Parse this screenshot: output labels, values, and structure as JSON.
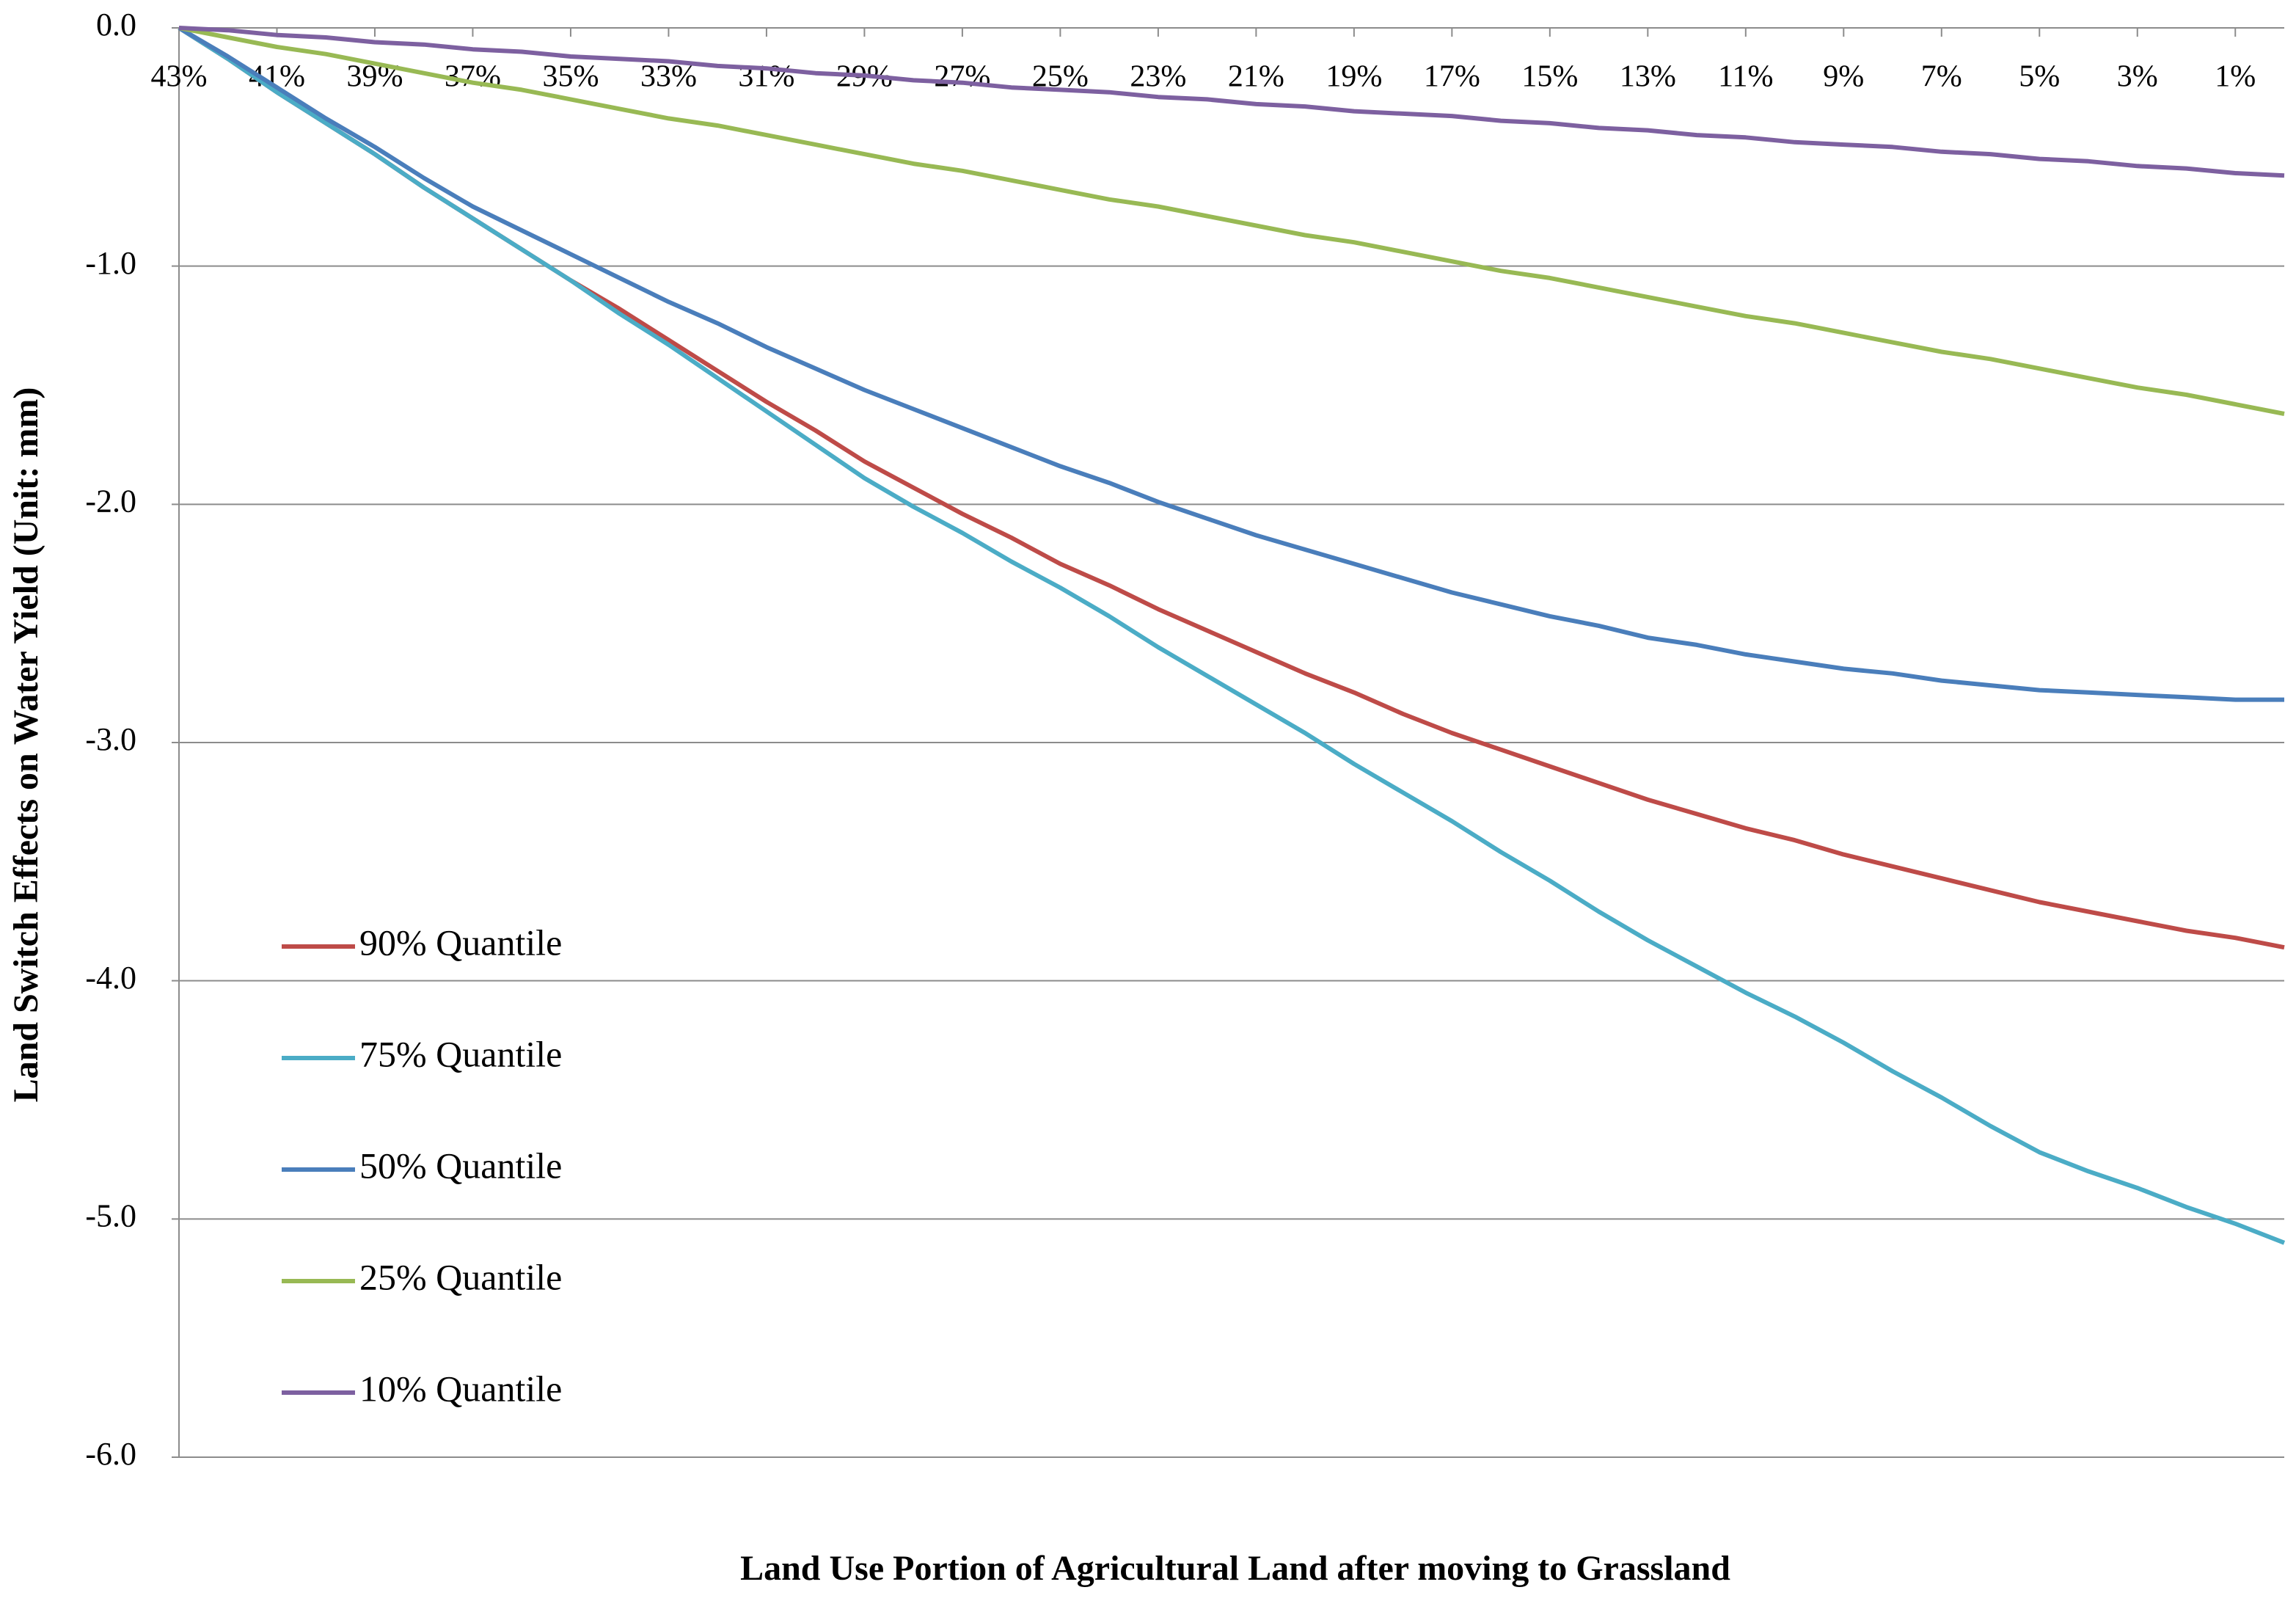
{
  "chart_data": {
    "type": "line",
    "x_label": "Land Use  Portion of Agricultural Land after moving to Grassland",
    "y_label": "Land Switch Effects on Water Yield (Unit: mm)",
    "categories": [
      "43%",
      null,
      "41%",
      null,
      "39%",
      null,
      "37%",
      null,
      "35%",
      null,
      "33%",
      null,
      "31%",
      null,
      "29%",
      null,
      "27%",
      null,
      "25%",
      null,
      "23%",
      null,
      "21%",
      null,
      "19%",
      null,
      "17%",
      null,
      "15%",
      null,
      "13%",
      null,
      "11%",
      null,
      "9%",
      null,
      "7%",
      null,
      "5%",
      null,
      "3%",
      null,
      "1%",
      null
    ],
    "ylim": [
      -6,
      0
    ],
    "yticks": [
      {
        "value": -6,
        "label": "-6.0"
      },
      {
        "value": -5,
        "label": "-5.0"
      },
      {
        "value": -4,
        "label": "-4.0"
      },
      {
        "value": -3,
        "label": "-3.0"
      },
      {
        "value": -2,
        "label": "-2.0"
      },
      {
        "value": -1,
        "label": "-1.0"
      },
      {
        "value": 0,
        "label": "0.0"
      }
    ],
    "grid": true,
    "legend": "lower left",
    "series": [
      {
        "name": "90% Quantile",
        "color": "#be4b48",
        "values": [
          0,
          -0.13,
          -0.27,
          -0.4,
          -0.53,
          -0.67,
          -0.8,
          -0.93,
          -1.06,
          -1.18,
          -1.31,
          -1.44,
          -1.57,
          -1.69,
          -1.82,
          -1.93,
          -2.04,
          -2.14,
          -2.25,
          -2.34,
          -2.44,
          -2.53,
          -2.62,
          -2.71,
          -2.79,
          -2.88,
          -2.96,
          -3.03,
          -3.1,
          -3.17,
          -3.24,
          -3.3,
          -3.36,
          -3.41,
          -3.47,
          -3.52,
          -3.57,
          -3.62,
          -3.67,
          -3.71,
          -3.75,
          -3.79,
          -3.82,
          -3.86
        ]
      },
      {
        "name": "75% Quantile",
        "color": "#4bacc6",
        "values": [
          0,
          -0.13,
          -0.27,
          -0.4,
          -0.53,
          -0.67,
          -0.8,
          -0.93,
          -1.06,
          -1.2,
          -1.33,
          -1.47,
          -1.61,
          -1.75,
          -1.89,
          -2.01,
          -2.12,
          -2.24,
          -2.35,
          -2.47,
          -2.6,
          -2.72,
          -2.84,
          -2.96,
          -3.09,
          -3.21,
          -3.33,
          -3.46,
          -3.58,
          -3.71,
          -3.83,
          -3.94,
          -4.05,
          -4.15,
          -4.26,
          -4.38,
          -4.49,
          -4.61,
          -4.72,
          -4.8,
          -4.87,
          -4.95,
          -5.02,
          -5.1
        ]
      },
      {
        "name": "50% Quantile",
        "color": "#4a7ebb",
        "values": [
          0,
          -0.12,
          -0.25,
          -0.38,
          -0.5,
          -0.63,
          -0.75,
          -0.85,
          -0.95,
          -1.05,
          -1.15,
          -1.24,
          -1.34,
          -1.43,
          -1.52,
          -1.6,
          -1.68,
          -1.76,
          -1.84,
          -1.91,
          -1.99,
          -2.06,
          -2.13,
          -2.19,
          -2.25,
          -2.31,
          -2.37,
          -2.42,
          -2.47,
          -2.51,
          -2.56,
          -2.59,
          -2.63,
          -2.66,
          -2.69,
          -2.71,
          -2.74,
          -2.76,
          -2.78,
          -2.79,
          -2.8,
          -2.81,
          -2.82,
          -2.82
        ]
      },
      {
        "name": "25% Quantile",
        "color": "#98b954",
        "values": [
          0,
          -0.04,
          -0.08,
          -0.11,
          -0.15,
          -0.19,
          -0.23,
          -0.26,
          -0.3,
          -0.34,
          -0.38,
          -0.41,
          -0.45,
          -0.49,
          -0.53,
          -0.57,
          -0.6,
          -0.64,
          -0.68,
          -0.72,
          -0.75,
          -0.79,
          -0.83,
          -0.87,
          -0.9,
          -0.94,
          -0.98,
          -1.02,
          -1.05,
          -1.09,
          -1.13,
          -1.17,
          -1.21,
          -1.24,
          -1.28,
          -1.32,
          -1.36,
          -1.39,
          -1.43,
          -1.47,
          -1.51,
          -1.54,
          -1.58,
          -1.62
        ]
      },
      {
        "name": "10% Quantile",
        "color": "#7d60a0",
        "values": [
          0,
          -0.01,
          -0.03,
          -0.04,
          -0.06,
          -0.07,
          -0.09,
          -0.1,
          -0.12,
          -0.13,
          -0.14,
          -0.16,
          -0.17,
          -0.19,
          -0.2,
          -0.22,
          -0.23,
          -0.25,
          -0.26,
          -0.27,
          -0.29,
          -0.3,
          -0.32,
          -0.33,
          -0.35,
          -0.36,
          -0.37,
          -0.39,
          -0.4,
          -0.42,
          -0.43,
          -0.45,
          -0.46,
          -0.48,
          -0.49,
          -0.5,
          -0.52,
          -0.53,
          -0.55,
          -0.56,
          -0.58,
          -0.59,
          -0.61,
          -0.62
        ]
      }
    ]
  }
}
